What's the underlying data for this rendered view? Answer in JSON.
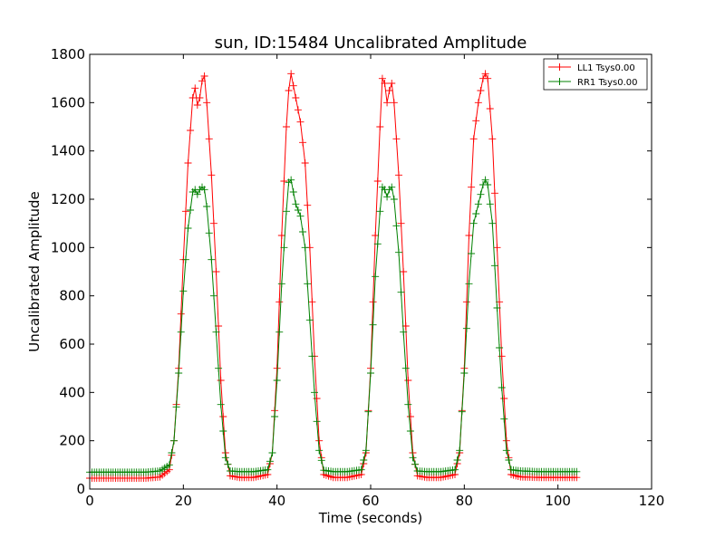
{
  "chart_data": {
    "type": "line",
    "title": "sun, ID:15484 Uncalibrated Amplitude",
    "xlabel": "Time (seconds)",
    "ylabel": "Uncalibrated Amplitude",
    "xlim": [
      0,
      120
    ],
    "ylim": [
      0,
      1800
    ],
    "xticks": [
      0,
      20,
      40,
      60,
      80,
      100,
      120
    ],
    "yticks": [
      0,
      200,
      400,
      600,
      800,
      1000,
      1200,
      1400,
      1600,
      1800
    ],
    "xtick_labels": [
      "0",
      "20",
      "40",
      "60",
      "80",
      "100",
      "120"
    ],
    "ytick_labels": [
      "0",
      "200",
      "400",
      "600",
      "800",
      "1000",
      "1200",
      "1400",
      "1600",
      "1800"
    ],
    "grid": false,
    "legend_position": "top-right",
    "marker": "+",
    "series": [
      {
        "name": "LL1 Tsys0.00",
        "color": "#ff0000",
        "x": [
          0,
          4,
          8,
          12,
          15,
          17,
          18,
          19,
          20,
          21,
          22,
          22.5,
          23,
          23.5,
          24,
          24.5,
          25,
          26,
          27,
          28,
          29,
          30,
          32,
          35,
          38,
          39,
          40,
          41,
          42,
          42.5,
          43,
          44,
          45,
          46,
          47,
          48,
          49,
          50,
          52,
          55,
          58,
          59,
          60,
          61,
          62,
          62.5,
          63,
          63.5,
          64,
          64.5,
          65,
          66,
          67,
          68,
          69,
          70,
          72,
          75,
          78,
          79,
          80,
          81,
          82,
          83,
          84,
          84.5,
          85,
          86,
          87,
          88,
          89,
          90,
          92,
          96,
          100,
          104
        ],
        "y": [
          45,
          45,
          45,
          45,
          50,
          80,
          200,
          500,
          950,
          1350,
          1620,
          1660,
          1590,
          1620,
          1690,
          1710,
          1600,
          1300,
          900,
          450,
          150,
          55,
          48,
          48,
          60,
          150,
          500,
          1050,
          1500,
          1650,
          1720,
          1620,
          1520,
          1350,
          1000,
          550,
          200,
          60,
          48,
          48,
          60,
          150,
          500,
          1050,
          1500,
          1700,
          1680,
          1600,
          1650,
          1680,
          1600,
          1300,
          900,
          450,
          150,
          55,
          48,
          48,
          60,
          150,
          500,
          1050,
          1450,
          1600,
          1700,
          1720,
          1700,
          1450,
          1000,
          550,
          200,
          60,
          50,
          48,
          48,
          48
        ]
      },
      {
        "name": "RR1 Tsys0.00",
        "color": "#008000",
        "x": [
          0,
          4,
          8,
          12,
          15,
          17,
          18,
          19,
          20,
          21,
          22,
          22.5,
          23,
          23.5,
          24,
          24.5,
          25,
          26,
          27,
          28,
          29,
          30,
          32,
          35,
          38,
          39,
          40,
          41,
          42,
          42.5,
          43,
          44,
          45,
          46,
          47,
          48,
          49,
          50,
          52,
          55,
          58,
          59,
          60,
          61,
          62,
          62.5,
          63,
          63.5,
          64,
          64.5,
          65,
          66,
          67,
          68,
          69,
          70,
          72,
          75,
          78,
          79,
          80,
          81,
          82,
          83,
          84,
          84.5,
          85,
          86,
          87,
          88,
          89,
          90,
          92,
          96,
          100,
          104
        ],
        "y": [
          70,
          70,
          70,
          70,
          75,
          100,
          200,
          480,
          820,
          1080,
          1230,
          1240,
          1220,
          1240,
          1250,
          1240,
          1170,
          950,
          650,
          350,
          130,
          75,
          72,
          72,
          80,
          150,
          450,
          850,
          1150,
          1270,
          1280,
          1180,
          1130,
          1000,
          700,
          400,
          160,
          78,
          72,
          72,
          80,
          160,
          480,
          880,
          1150,
          1250,
          1240,
          1210,
          1240,
          1250,
          1200,
          980,
          650,
          350,
          130,
          75,
          72,
          72,
          80,
          160,
          480,
          850,
          1100,
          1180,
          1260,
          1280,
          1260,
          1100,
          750,
          420,
          160,
          80,
          75,
          72,
          72,
          72
        ]
      }
    ]
  }
}
